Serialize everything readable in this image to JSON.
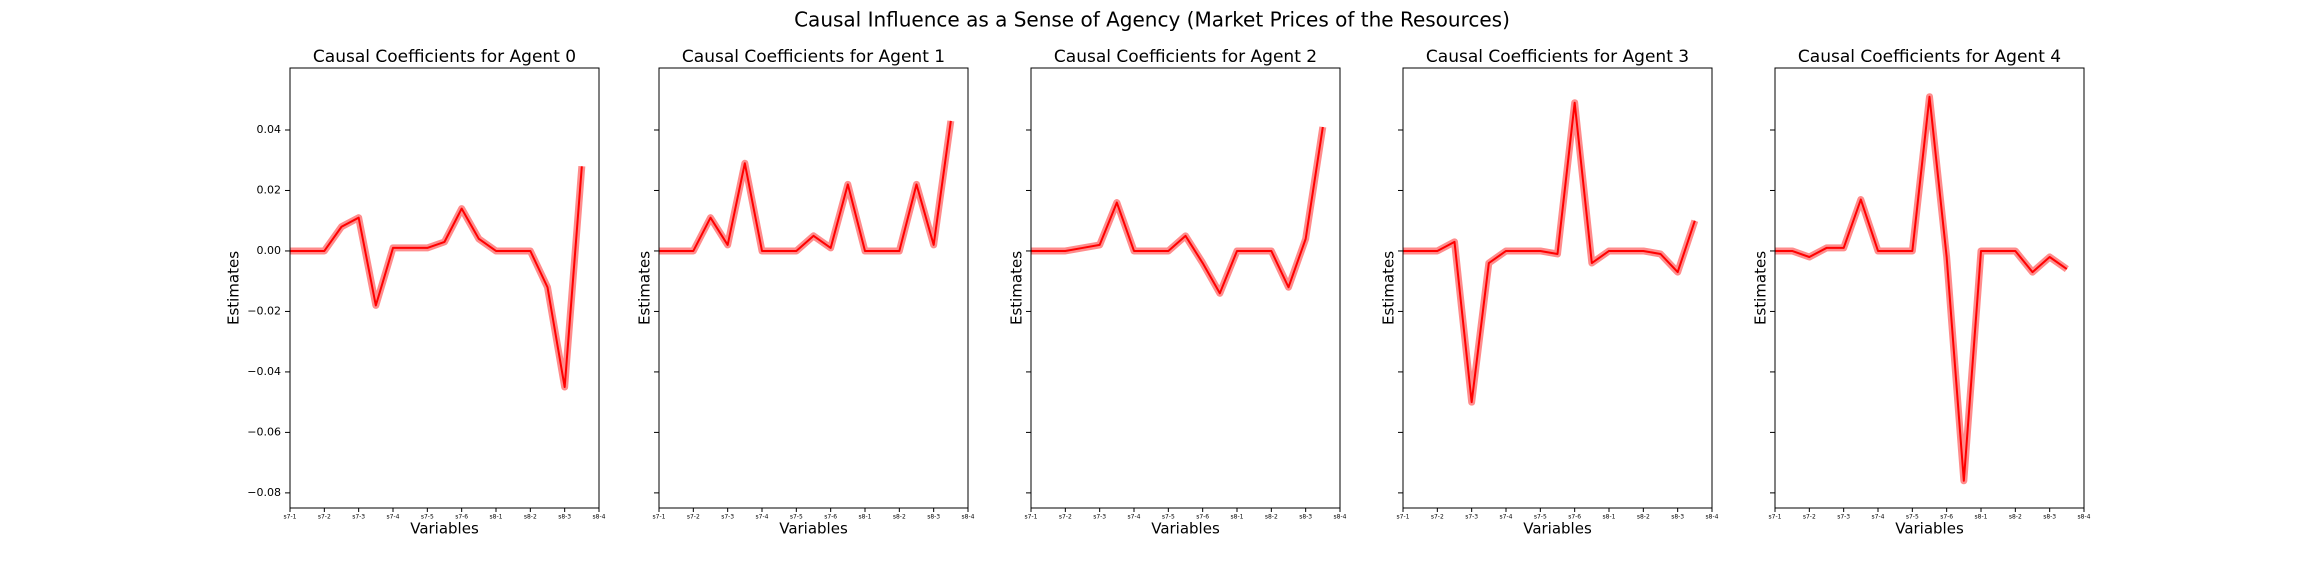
{
  "title": "Causal Influence as a Sense of Agency (Market Prices of the Resources)",
  "chart_data": [
    {
      "type": "line",
      "title": "Causal Coefficients for Agent 0",
      "xlabel": "Variables",
      "ylabel": "Estimates",
      "color": "#ff0000",
      "x": [
        0,
        1,
        2,
        3,
        4,
        5,
        6,
        7,
        8,
        9,
        10,
        11,
        12,
        13,
        14,
        15,
        16,
        17
      ],
      "values": [
        0,
        0,
        0,
        0.008,
        0.011,
        -0.018,
        0.001,
        0.001,
        0.001,
        0.003,
        0.014,
        0.004,
        0,
        0,
        0,
        -0.012,
        -0.045,
        0.028
      ],
      "xlim": [
        0,
        18
      ],
      "xticks": [
        {
          "value": 0,
          "label": "s7-1"
        },
        {
          "value": 2,
          "label": "s7-2"
        },
        {
          "value": 4,
          "label": "s7-3"
        },
        {
          "value": 6,
          "label": "s7-4"
        },
        {
          "value": 8,
          "label": "s7-5"
        },
        {
          "value": 10,
          "label": "s7-6"
        },
        {
          "value": 12,
          "label": "s8-1"
        },
        {
          "value": 14,
          "label": "s8-2"
        },
        {
          "value": 16,
          "label": "s8-3"
        },
        {
          "value": 18,
          "label": "s8-4"
        }
      ],
      "ylim": [
        -0.085,
        0.0605
      ],
      "yticks": [
        {
          "value": -0.08,
          "label": "−0.08"
        },
        {
          "value": -0.06,
          "label": "−0.06"
        },
        {
          "value": -0.04,
          "label": "−0.04"
        },
        {
          "value": -0.02,
          "label": "−0.02"
        },
        {
          "value": 0,
          "label": "0.00"
        },
        {
          "value": 0.02,
          "label": "0.02"
        },
        {
          "value": 0.04,
          "label": "0.04"
        }
      ]
    },
    {
      "type": "line",
      "title": "Causal Coefficients for Agent 1",
      "xlabel": "Variables",
      "ylabel": "Estimates",
      "color": "#ff0000",
      "x": [
        0,
        1,
        2,
        3,
        4,
        5,
        6,
        7,
        8,
        9,
        10,
        11,
        12,
        13,
        14,
        15,
        16,
        17
      ],
      "values": [
        0,
        0,
        0,
        0.011,
        0.002,
        0.029,
        0,
        0,
        0,
        0.005,
        0.001,
        0.022,
        0,
        0,
        0,
        0.022,
        0.002,
        0.043
      ]
    },
    {
      "type": "line",
      "title": "Causal Coefficients for Agent 2",
      "xlabel": "Variables",
      "ylabel": "Estimates",
      "color": "#ff0000",
      "x": [
        0,
        1,
        2,
        3,
        4,
        5,
        6,
        7,
        8,
        9,
        10,
        11,
        12,
        13,
        14,
        15,
        16,
        17
      ],
      "values": [
        0,
        0,
        0,
        0.001,
        0.002,
        0.016,
        0,
        0,
        0,
        0.005,
        -0.004,
        -0.014,
        0,
        0,
        0,
        -0.012,
        0.004,
        0.041
      ]
    },
    {
      "type": "line",
      "title": "Causal Coefficients for Agent 3",
      "xlabel": "Variables",
      "ylabel": "Estimates",
      "color": "#ff0000",
      "x": [
        0,
        1,
        2,
        3,
        4,
        5,
        6,
        7,
        8,
        9,
        10,
        11,
        12,
        13,
        14,
        15,
        16,
        17
      ],
      "values": [
        0,
        0,
        0,
        0.003,
        -0.05,
        -0.004,
        0,
        0,
        0,
        -0.001,
        0.049,
        -0.004,
        0,
        0,
        0,
        -0.001,
        -0.007,
        0.01
      ]
    },
    {
      "type": "line",
      "title": "Causal Coefficients for Agent 4",
      "xlabel": "Variables",
      "ylabel": "Estimates",
      "color": "#ff0000",
      "x": [
        0,
        1,
        2,
        3,
        4,
        5,
        6,
        7,
        8,
        9,
        10,
        11,
        12,
        13,
        14,
        15,
        16,
        17
      ],
      "values": [
        0,
        0,
        -0.002,
        0.001,
        0.001,
        0.017,
        0,
        0,
        0,
        0.051,
        -0.002,
        -0.076,
        0,
        0,
        0,
        -0.007,
        -0.002,
        -0.006
      ]
    }
  ]
}
